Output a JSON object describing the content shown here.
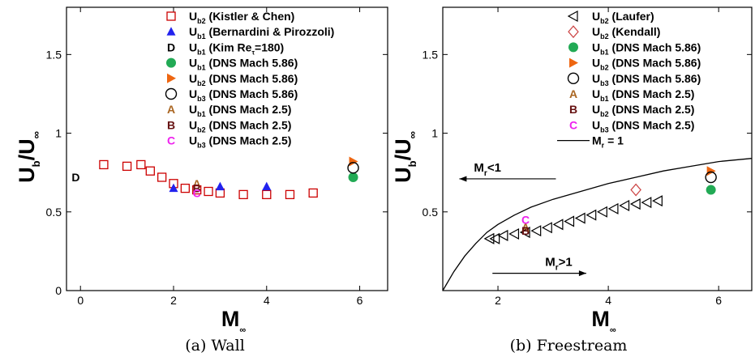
{
  "chart_data": [
    {
      "type": "scatter",
      "caption": "(a) Wall",
      "xlabel": "M",
      "xlabel_sub": "∞",
      "ylabel": "U",
      "ylabel_sub": "b",
      "ylabel_denom": "U",
      "ylabel_denom_sub": "∞",
      "xlim": [
        -0.3,
        6.6
      ],
      "ylim": [
        0,
        1.8
      ],
      "xticks": [
        "0",
        "2",
        "4",
        "6"
      ],
      "xtick_values": [
        0,
        2,
        4,
        6
      ],
      "yticks": [
        "0",
        "0.5",
        "1",
        "1.5"
      ],
      "ytick_values": [
        0,
        0.5,
        1,
        1.5
      ],
      "legend_position": "top-center",
      "series": [
        {
          "main": "U",
          "sub": "b2",
          "rest": " (Kistler & Chen)",
          "marker": "square-open",
          "color": "#cc0000",
          "x": [
            0.5,
            1.0,
            1.3,
            1.5,
            1.75,
            2.0,
            2.25,
            2.5,
            2.75,
            3.0,
            3.5,
            4.0,
            4.5,
            5.0
          ],
          "y": [
            0.8,
            0.79,
            0.8,
            0.76,
            0.72,
            0.68,
            0.65,
            0.64,
            0.63,
            0.62,
            0.61,
            0.61,
            0.61,
            0.62
          ]
        },
        {
          "main": "U",
          "sub": "b1",
          "rest": " (Bernardini & Pirozzoli)",
          "marker": "triangle-filled",
          "color": "#2222ee",
          "x": [
            2.0,
            3.0,
            4.0
          ],
          "y": [
            0.65,
            0.66,
            0.66
          ]
        },
        {
          "main": "U",
          "sub": "b1",
          "rest": " (Kim Re",
          "rest_sub": "τ",
          "rest_end": "=180)",
          "marker": "letter",
          "letter": "D",
          "color": "#000000",
          "x": [
            -0.1
          ],
          "y": [
            0.72
          ]
        },
        {
          "main": "U",
          "sub": "b1",
          "rest": " (DNS Mach 5.86)",
          "marker": "circle-filled",
          "color": "#22aa55",
          "x": [
            5.86
          ],
          "y": [
            0.72
          ]
        },
        {
          "main": "U",
          "sub": "b2",
          "rest": " (DNS Mach 5.86)",
          "marker": "triangle-right-filled",
          "color": "#ee6611",
          "x": [
            5.86
          ],
          "y": [
            0.82
          ]
        },
        {
          "main": "U",
          "sub": "b3",
          "rest": " (DNS Mach 5.86)",
          "marker": "circle-open",
          "color": "#000000",
          "x": [
            5.86
          ],
          "y": [
            0.78
          ]
        },
        {
          "main": "U",
          "sub": "b1",
          "rest": " (DNS Mach 2.5)",
          "marker": "letter",
          "letter": "A",
          "color": "#aa6622",
          "x": [
            2.5
          ],
          "y": [
            0.68
          ]
        },
        {
          "main": "U",
          "sub": "b2",
          "rest": " (DNS Mach 2.5)",
          "marker": "letter",
          "letter": "B",
          "color": "#661111",
          "x": [
            2.5
          ],
          "y": [
            0.65
          ]
        },
        {
          "main": "U",
          "sub": "b3",
          "rest": " (DNS Mach 2.5)",
          "marker": "letter",
          "letter": "C",
          "color": "#ee22ee",
          "x": [
            2.5
          ],
          "y": [
            0.62
          ]
        }
      ]
    },
    {
      "type": "scatter",
      "caption": "(b) Freestream",
      "xlabel": "M",
      "xlabel_sub": "∞",
      "ylabel": "U",
      "ylabel_sub": "b",
      "ylabel_denom": "U",
      "ylabel_denom_sub": "∞",
      "xlim": [
        1.0,
        6.6
      ],
      "ylim": [
        0,
        1.8
      ],
      "xticks": [
        "2",
        "4",
        "6"
      ],
      "xtick_values": [
        2,
        4,
        6
      ],
      "yticks": [
        "0.5",
        "1",
        "1.5"
      ],
      "ytick_values": [
        0.5,
        1,
        1.5
      ],
      "legend_position": "top-right",
      "series": [
        {
          "main": "U",
          "sub": "b2",
          "rest": " (Laufer)",
          "marker": "triangle-left-open",
          "color": "#000000",
          "x": [
            1.85,
            1.95,
            2.1,
            2.3,
            2.5,
            2.7,
            2.9,
            3.1,
            3.3,
            3.5,
            3.7,
            3.9,
            4.1,
            4.3,
            4.5,
            4.7,
            4.9
          ],
          "y": [
            0.33,
            0.33,
            0.35,
            0.36,
            0.37,
            0.38,
            0.4,
            0.42,
            0.44,
            0.46,
            0.48,
            0.5,
            0.52,
            0.54,
            0.55,
            0.56,
            0.57
          ]
        },
        {
          "main": "U",
          "sub": "b2",
          "rest": " (Kendall)",
          "marker": "diamond-open",
          "color": "#cc4444",
          "x": [
            4.5
          ],
          "y": [
            0.64
          ]
        },
        {
          "main": "U",
          "sub": "b1",
          "rest": " (DNS Mach 5.86)",
          "marker": "circle-filled",
          "color": "#22aa55",
          "x": [
            5.86
          ],
          "y": [
            0.64
          ]
        },
        {
          "main": "U",
          "sub": "b2",
          "rest": " (DNS Mach 5.86)",
          "marker": "triangle-right-filled",
          "color": "#ee6611",
          "x": [
            5.86
          ],
          "y": [
            0.76
          ]
        },
        {
          "main": "U",
          "sub": "b3",
          "rest": " (DNS Mach 5.86)",
          "marker": "circle-open",
          "color": "#000000",
          "x": [
            5.86
          ],
          "y": [
            0.72
          ]
        },
        {
          "main": "U",
          "sub": "b1",
          "rest": " (DNS Mach 2.5)",
          "marker": "letter",
          "letter": "A",
          "color": "#aa6622",
          "x": [
            2.5
          ],
          "y": [
            0.4
          ]
        },
        {
          "main": "U",
          "sub": "b2",
          "rest": " (DNS Mach 2.5)",
          "marker": "letter",
          "letter": "B",
          "color": "#661111",
          "x": [
            2.5
          ],
          "y": [
            0.38
          ]
        },
        {
          "main": "U",
          "sub": "b3",
          "rest": " (DNS Mach 2.5)",
          "marker": "letter",
          "letter": "C",
          "color": "#ee22ee",
          "x": [
            2.5
          ],
          "y": [
            0.45
          ]
        },
        {
          "main": "M",
          "sub": "r",
          "rest": " = 1",
          "marker": "line",
          "color": "#000000",
          "x": [
            1.0,
            1.2,
            1.4,
            1.6,
            1.8,
            2.0,
            2.3,
            2.6,
            3.0,
            3.5,
            4.0,
            4.5,
            5.0,
            5.5,
            6.0,
            6.6
          ],
          "y": [
            0.0,
            0.12,
            0.22,
            0.3,
            0.37,
            0.42,
            0.48,
            0.53,
            0.58,
            0.63,
            0.68,
            0.72,
            0.76,
            0.79,
            0.82,
            0.84
          ]
        }
      ],
      "annotations": [
        {
          "main": "M",
          "sub": "r",
          "rest": "<1",
          "arrow": "left",
          "x_from": 3.05,
          "x_to": 1.3,
          "y": 0.71
        },
        {
          "main": "M",
          "sub": "r",
          "rest": ">1",
          "arrow": "right",
          "x_from": 1.9,
          "x_to": 3.6,
          "y": 0.11
        }
      ]
    }
  ]
}
